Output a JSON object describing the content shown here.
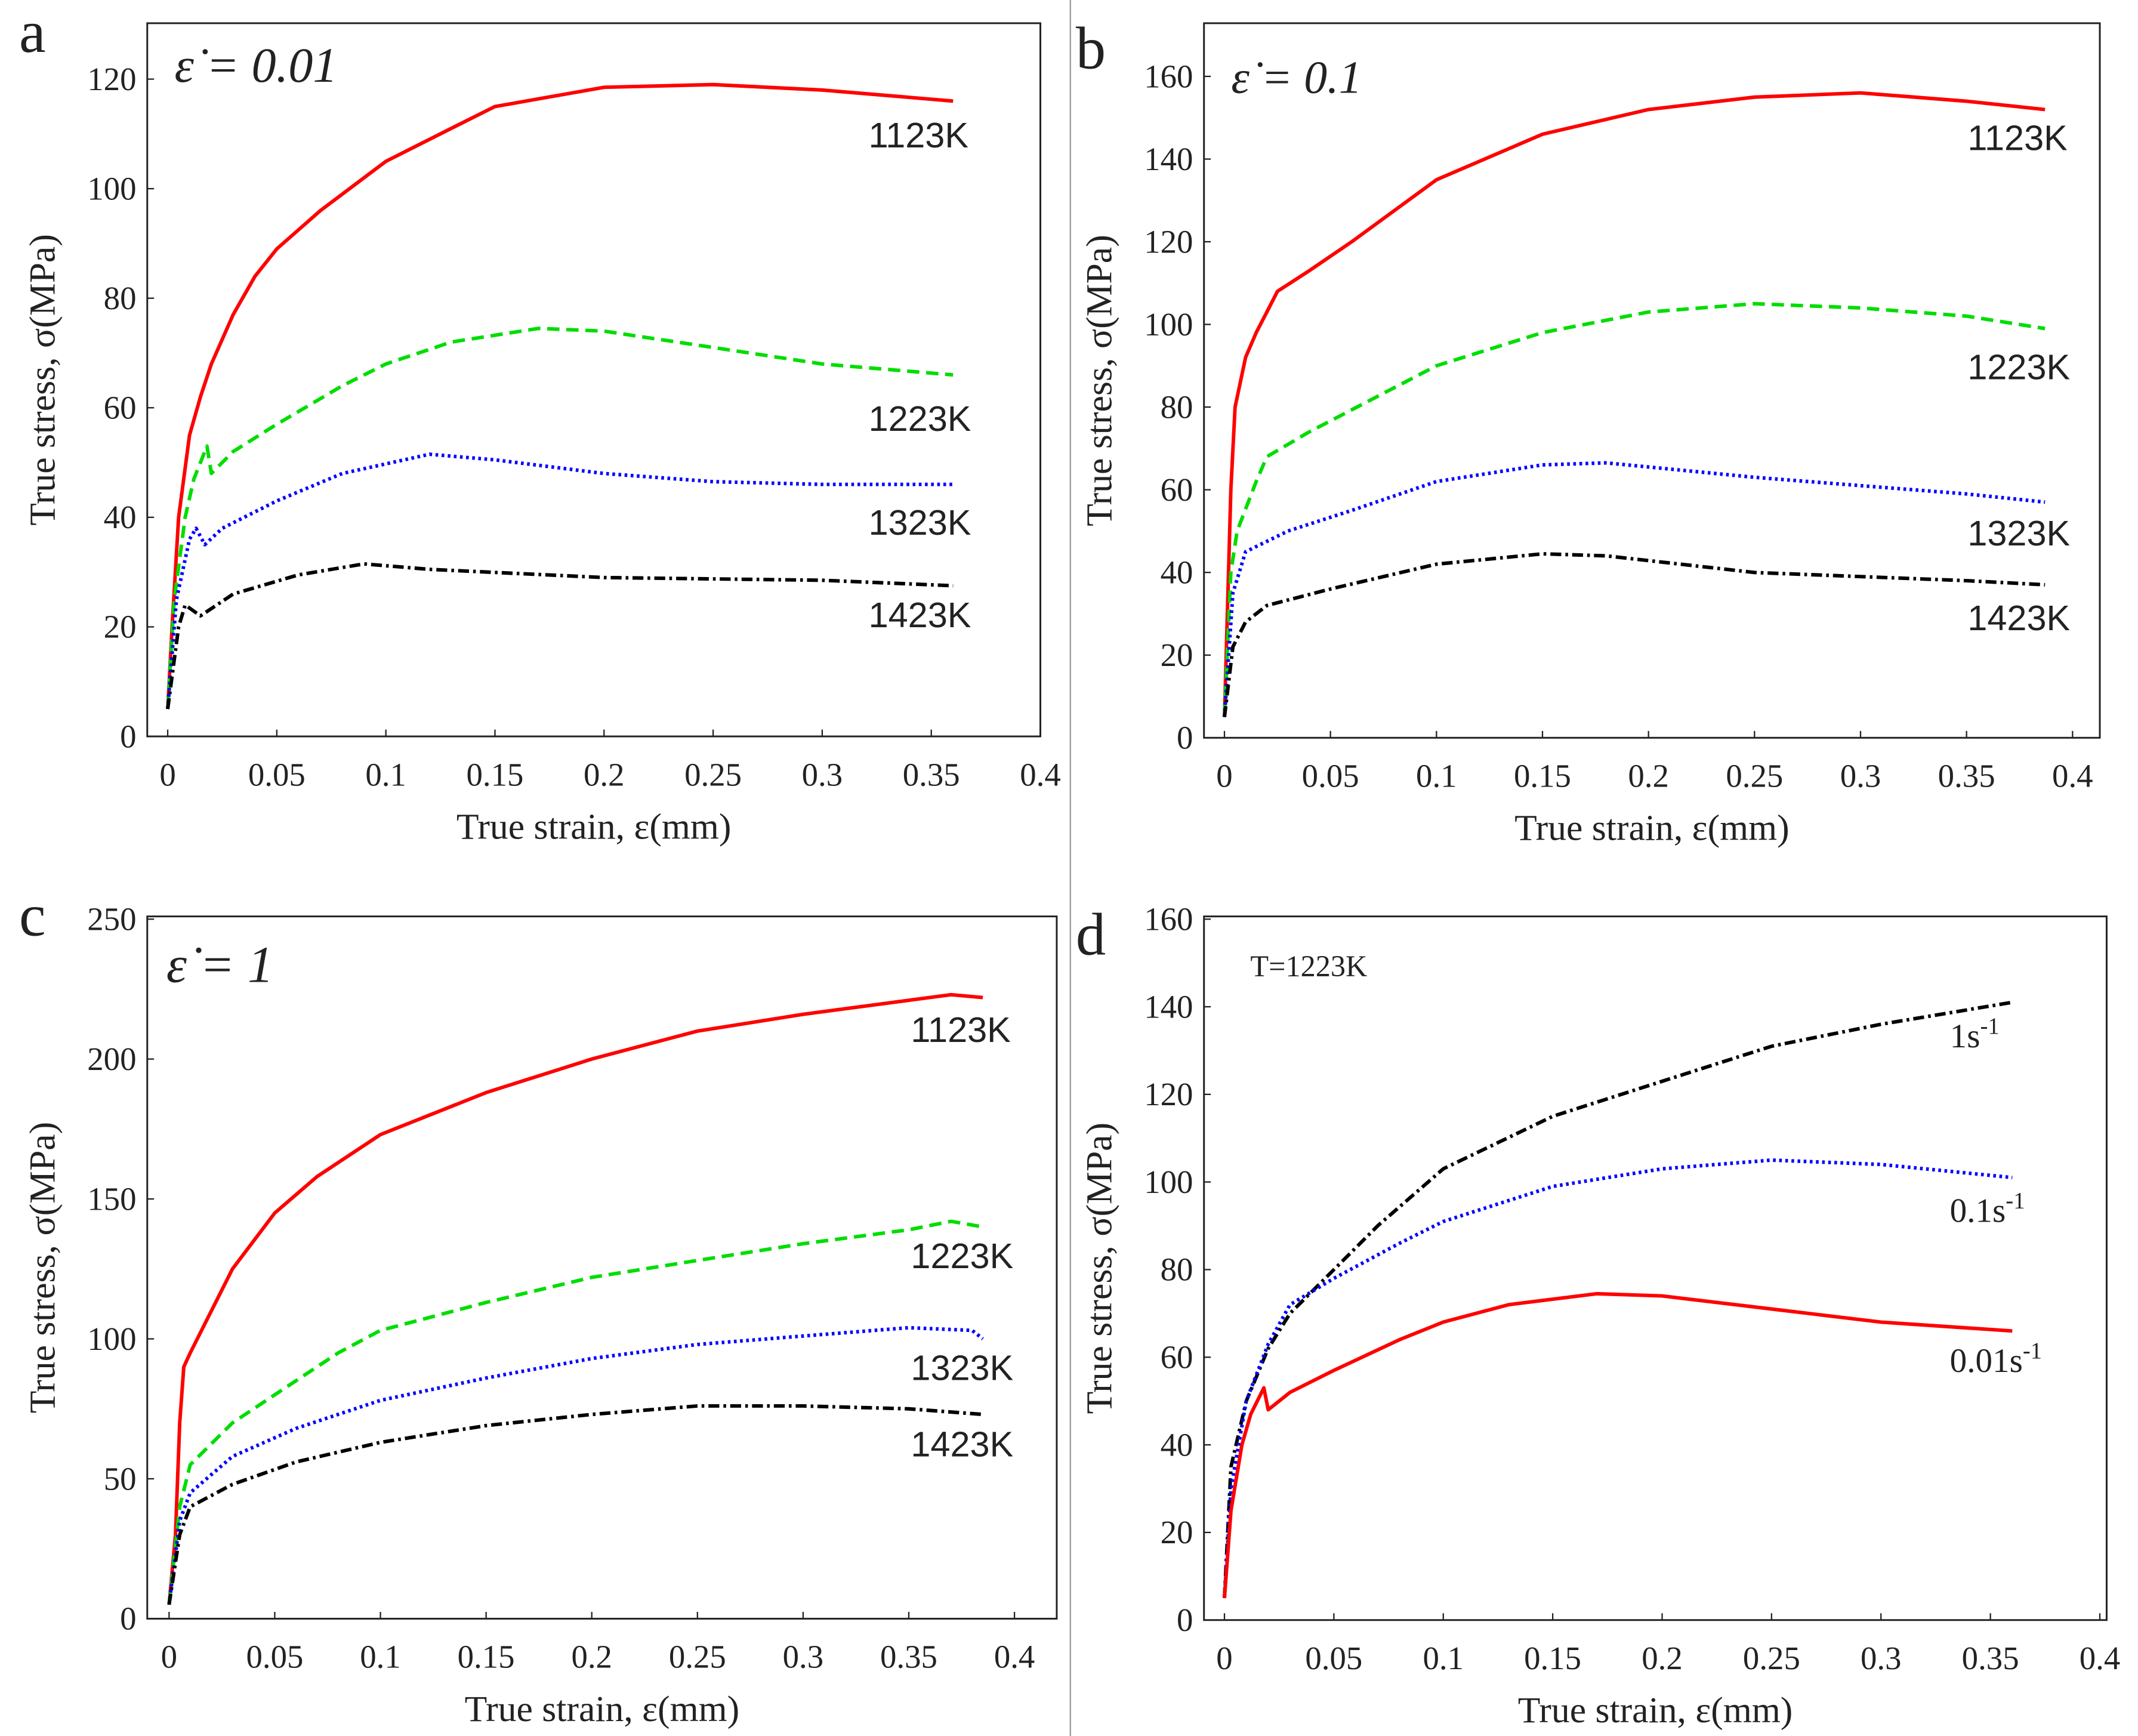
{
  "chart_data": [
    {
      "panel": "a",
      "type": "line",
      "annotation": "ε̇ = 0.01",
      "xlabel": "True strain, ε(mm)",
      "ylabel": "True stress, σ(MPa)",
      "xlim": [
        0,
        0.4
      ],
      "ylim": [
        0,
        120
      ],
      "xticks": [
        "0",
        "0.05",
        "0.1",
        "0.15",
        "0.2",
        "0.25",
        "0.3",
        "0.35",
        "0.4"
      ],
      "yticks": [
        "0",
        "20",
        "40",
        "60",
        "80",
        "100",
        "120"
      ],
      "series": [
        {
          "name": "1123K",
          "color": "#ff0000",
          "style": "solid",
          "points": [
            [
              0,
              5
            ],
            [
              0.002,
              20
            ],
            [
              0.005,
              40
            ],
            [
              0.01,
              55
            ],
            [
              0.015,
              62
            ],
            [
              0.02,
              68
            ],
            [
              0.03,
              77
            ],
            [
              0.04,
              84
            ],
            [
              0.05,
              89
            ],
            [
              0.07,
              96
            ],
            [
              0.1,
              105
            ],
            [
              0.13,
              111
            ],
            [
              0.15,
              115
            ],
            [
              0.2,
              118.5
            ],
            [
              0.25,
              119
            ],
            [
              0.3,
              118
            ],
            [
              0.36,
              116
            ]
          ]
        },
        {
          "name": "1223K",
          "color": "#00dd00",
          "style": "dashed",
          "points": [
            [
              0,
              5
            ],
            [
              0.003,
              25
            ],
            [
              0.008,
              40
            ],
            [
              0.012,
              47
            ],
            [
              0.018,
              53
            ],
            [
              0.02,
              48
            ],
            [
              0.03,
              52
            ],
            [
              0.05,
              57
            ],
            [
              0.08,
              64
            ],
            [
              0.1,
              68
            ],
            [
              0.13,
              72
            ],
            [
              0.17,
              74.5
            ],
            [
              0.2,
              74
            ],
            [
              0.25,
              71
            ],
            [
              0.3,
              68
            ],
            [
              0.36,
              66
            ]
          ]
        },
        {
          "name": "1323K",
          "color": "#0000ff",
          "style": "dotted",
          "points": [
            [
              0,
              5
            ],
            [
              0.004,
              25
            ],
            [
              0.01,
              36
            ],
            [
              0.013,
              38
            ],
            [
              0.017,
              35
            ],
            [
              0.025,
              38
            ],
            [
              0.05,
              43
            ],
            [
              0.08,
              48
            ],
            [
              0.12,
              51.5
            ],
            [
              0.15,
              50.5
            ],
            [
              0.2,
              48
            ],
            [
              0.25,
              46.5
            ],
            [
              0.3,
              46
            ],
            [
              0.36,
              46
            ]
          ]
        },
        {
          "name": "1423K",
          "color": "#000000",
          "style": "dashdot",
          "points": [
            [
              0,
              5
            ],
            [
              0.005,
              20
            ],
            [
              0.008,
              24
            ],
            [
              0.015,
              22
            ],
            [
              0.03,
              26
            ],
            [
              0.06,
              29.5
            ],
            [
              0.09,
              31.5
            ],
            [
              0.12,
              30.5
            ],
            [
              0.2,
              29
            ],
            [
              0.3,
              28.5
            ],
            [
              0.36,
              27.5
            ]
          ]
        }
      ]
    },
    {
      "panel": "b",
      "type": "line",
      "annotation": "ε̇ = 0.1",
      "xlabel": "True strain, ε(mm)",
      "ylabel": "True stress, σ(MPa)",
      "xlim": [
        0,
        0.4
      ],
      "ylim": [
        0,
        160
      ],
      "xticks": [
        "0",
        "0.05",
        "0.1",
        "0.15",
        "0.2",
        "0.25",
        "0.3",
        "0.35",
        "0.4"
      ],
      "yticks": [
        "0",
        "20",
        "40",
        "60",
        "80",
        "100",
        "120",
        "140",
        "160"
      ],
      "series": [
        {
          "name": "1123K",
          "color": "#ff0000",
          "style": "solid",
          "points": [
            [
              0,
              5
            ],
            [
              0.003,
              60
            ],
            [
              0.005,
              80
            ],
            [
              0.01,
              92
            ],
            [
              0.015,
              98
            ],
            [
              0.02,
              103
            ],
            [
              0.025,
              108
            ],
            [
              0.04,
              113
            ],
            [
              0.06,
              120
            ],
            [
              0.1,
              135
            ],
            [
              0.15,
              146
            ],
            [
              0.2,
              152
            ],
            [
              0.25,
              155
            ],
            [
              0.3,
              156
            ],
            [
              0.35,
              154
            ],
            [
              0.387,
              152
            ]
          ]
        },
        {
          "name": "1223K",
          "color": "#00dd00",
          "style": "dashed",
          "points": [
            [
              0,
              5
            ],
            [
              0.003,
              40
            ],
            [
              0.006,
              50
            ],
            [
              0.015,
              62
            ],
            [
              0.02,
              68
            ],
            [
              0.04,
              74
            ],
            [
              0.07,
              82
            ],
            [
              0.1,
              90
            ],
            [
              0.15,
              98
            ],
            [
              0.2,
              103
            ],
            [
              0.25,
              105
            ],
            [
              0.3,
              104
            ],
            [
              0.35,
              102
            ],
            [
              0.387,
              99
            ]
          ]
        },
        {
          "name": "1323K",
          "color": "#0000ff",
          "style": "dotted",
          "points": [
            [
              0,
              5
            ],
            [
              0.004,
              35
            ],
            [
              0.01,
              45
            ],
            [
              0.03,
              50
            ],
            [
              0.06,
              55
            ],
            [
              0.1,
              62
            ],
            [
              0.15,
              66
            ],
            [
              0.18,
              66.5
            ],
            [
              0.25,
              63
            ],
            [
              0.3,
              61
            ],
            [
              0.35,
              59
            ],
            [
              0.387,
              57
            ]
          ]
        },
        {
          "name": "1423K",
          "color": "#000000",
          "style": "dashdot",
          "points": [
            [
              0,
              5
            ],
            [
              0.004,
              22
            ],
            [
              0.01,
              28
            ],
            [
              0.02,
              32
            ],
            [
              0.05,
              36
            ],
            [
              0.1,
              42
            ],
            [
              0.15,
              44.5
            ],
            [
              0.18,
              44
            ],
            [
              0.25,
              40
            ],
            [
              0.3,
              39
            ],
            [
              0.35,
              38
            ],
            [
              0.387,
              37
            ]
          ]
        }
      ]
    },
    {
      "panel": "c",
      "type": "line",
      "annotation": "ε̇ = 1",
      "xlabel": "True strain, ε(mm)",
      "ylabel": "True stress, σ(MPa)",
      "xlim": [
        0,
        0.4
      ],
      "ylim": [
        0,
        250
      ],
      "xticks": [
        "0",
        "0.05",
        "0.1",
        "0.15",
        "0.2",
        "0.25",
        "0.3",
        "0.35",
        "0.4"
      ],
      "yticks": [
        "0",
        "50",
        "100",
        "150",
        "200",
        "250"
      ],
      "series": [
        {
          "name": "1123K",
          "color": "#ff0000",
          "style": "solid",
          "points": [
            [
              0,
              5
            ],
            [
              0.003,
              30
            ],
            [
              0.005,
              70
            ],
            [
              0.007,
              90
            ],
            [
              0.01,
              95
            ],
            [
              0.02,
              110
            ],
            [
              0.03,
              125
            ],
            [
              0.05,
              145
            ],
            [
              0.07,
              158
            ],
            [
              0.1,
              173
            ],
            [
              0.15,
              188
            ],
            [
              0.2,
              200
            ],
            [
              0.25,
              210
            ],
            [
              0.3,
              216
            ],
            [
              0.35,
              221
            ],
            [
              0.37,
              223
            ],
            [
              0.385,
              222
            ]
          ]
        },
        {
          "name": "1223K",
          "color": "#00dd00",
          "style": "dashed",
          "points": [
            [
              0,
              5
            ],
            [
              0.005,
              40
            ],
            [
              0.01,
              55
            ],
            [
              0.03,
              70
            ],
            [
              0.05,
              80
            ],
            [
              0.08,
              95
            ],
            [
              0.1,
              103
            ],
            [
              0.15,
              113
            ],
            [
              0.2,
              122
            ],
            [
              0.25,
              128
            ],
            [
              0.3,
              134
            ],
            [
              0.35,
              139
            ],
            [
              0.37,
              142
            ],
            [
              0.385,
              140
            ]
          ]
        },
        {
          "name": "1323K",
          "color": "#0000ff",
          "style": "dotted",
          "points": [
            [
              0,
              5
            ],
            [
              0.005,
              35
            ],
            [
              0.01,
              45
            ],
            [
              0.03,
              58
            ],
            [
              0.06,
              68
            ],
            [
              0.1,
              78
            ],
            [
              0.15,
              86
            ],
            [
              0.2,
              93
            ],
            [
              0.25,
              98
            ],
            [
              0.3,
              101
            ],
            [
              0.35,
              104
            ],
            [
              0.38,
              103
            ],
            [
              0.385,
              100
            ]
          ]
        },
        {
          "name": "1423K",
          "color": "#000000",
          "style": "dashdot",
          "points": [
            [
              0,
              5
            ],
            [
              0.005,
              30
            ],
            [
              0.01,
              40
            ],
            [
              0.03,
              48
            ],
            [
              0.06,
              56
            ],
            [
              0.1,
              63
            ],
            [
              0.15,
              69
            ],
            [
              0.2,
              73
            ],
            [
              0.25,
              76
            ],
            [
              0.3,
              76
            ],
            [
              0.35,
              75
            ],
            [
              0.385,
              73
            ]
          ]
        }
      ]
    },
    {
      "panel": "d",
      "type": "line",
      "annotation": "T=1223K",
      "xlabel": "True strain, ε(mm)",
      "ylabel": "True stress, σ(MPa)",
      "xlim": [
        0,
        0.4
      ],
      "ylim": [
        0,
        160
      ],
      "xticks": [
        "0",
        "0.05",
        "0.1",
        "0.15",
        "0.2",
        "0.25",
        "0.3",
        "0.35",
        "0.4"
      ],
      "yticks": [
        "0",
        "20",
        "40",
        "60",
        "80",
        "100",
        "120",
        "140",
        "160"
      ],
      "series": [
        {
          "name": "1s",
          "sup": "-1",
          "color": "#000000",
          "style": "dashdot",
          "points": [
            [
              0,
              5
            ],
            [
              0.003,
              35
            ],
            [
              0.01,
              50
            ],
            [
              0.02,
              62
            ],
            [
              0.03,
              70
            ],
            [
              0.05,
              80
            ],
            [
              0.07,
              90
            ],
            [
              0.1,
              103
            ],
            [
              0.15,
              115
            ],
            [
              0.2,
              123
            ],
            [
              0.25,
              131
            ],
            [
              0.3,
              136
            ],
            [
              0.36,
              141
            ]
          ]
        },
        {
          "name": "0.1s",
          "sup": "-1",
          "color": "#0000ff",
          "style": "dotted",
          "points": [
            [
              0,
              5
            ],
            [
              0.003,
              30
            ],
            [
              0.01,
              50
            ],
            [
              0.02,
              63
            ],
            [
              0.03,
              72
            ],
            [
              0.05,
              78
            ],
            [
              0.08,
              86
            ],
            [
              0.1,
              91
            ],
            [
              0.15,
              99
            ],
            [
              0.2,
              103
            ],
            [
              0.25,
              105
            ],
            [
              0.3,
              104
            ],
            [
              0.36,
              101
            ]
          ]
        },
        {
          "name": "0.01s",
          "sup": "-1",
          "color": "#ff0000",
          "style": "solid",
          "points": [
            [
              0,
              5
            ],
            [
              0.003,
              25
            ],
            [
              0.008,
              40
            ],
            [
              0.012,
              47
            ],
            [
              0.018,
              53
            ],
            [
              0.02,
              48
            ],
            [
              0.03,
              52
            ],
            [
              0.05,
              57
            ],
            [
              0.08,
              64
            ],
            [
              0.1,
              68
            ],
            [
              0.13,
              72
            ],
            [
              0.17,
              74.5
            ],
            [
              0.2,
              74
            ],
            [
              0.25,
              71
            ],
            [
              0.3,
              68
            ],
            [
              0.36,
              66
            ]
          ]
        }
      ]
    }
  ]
}
